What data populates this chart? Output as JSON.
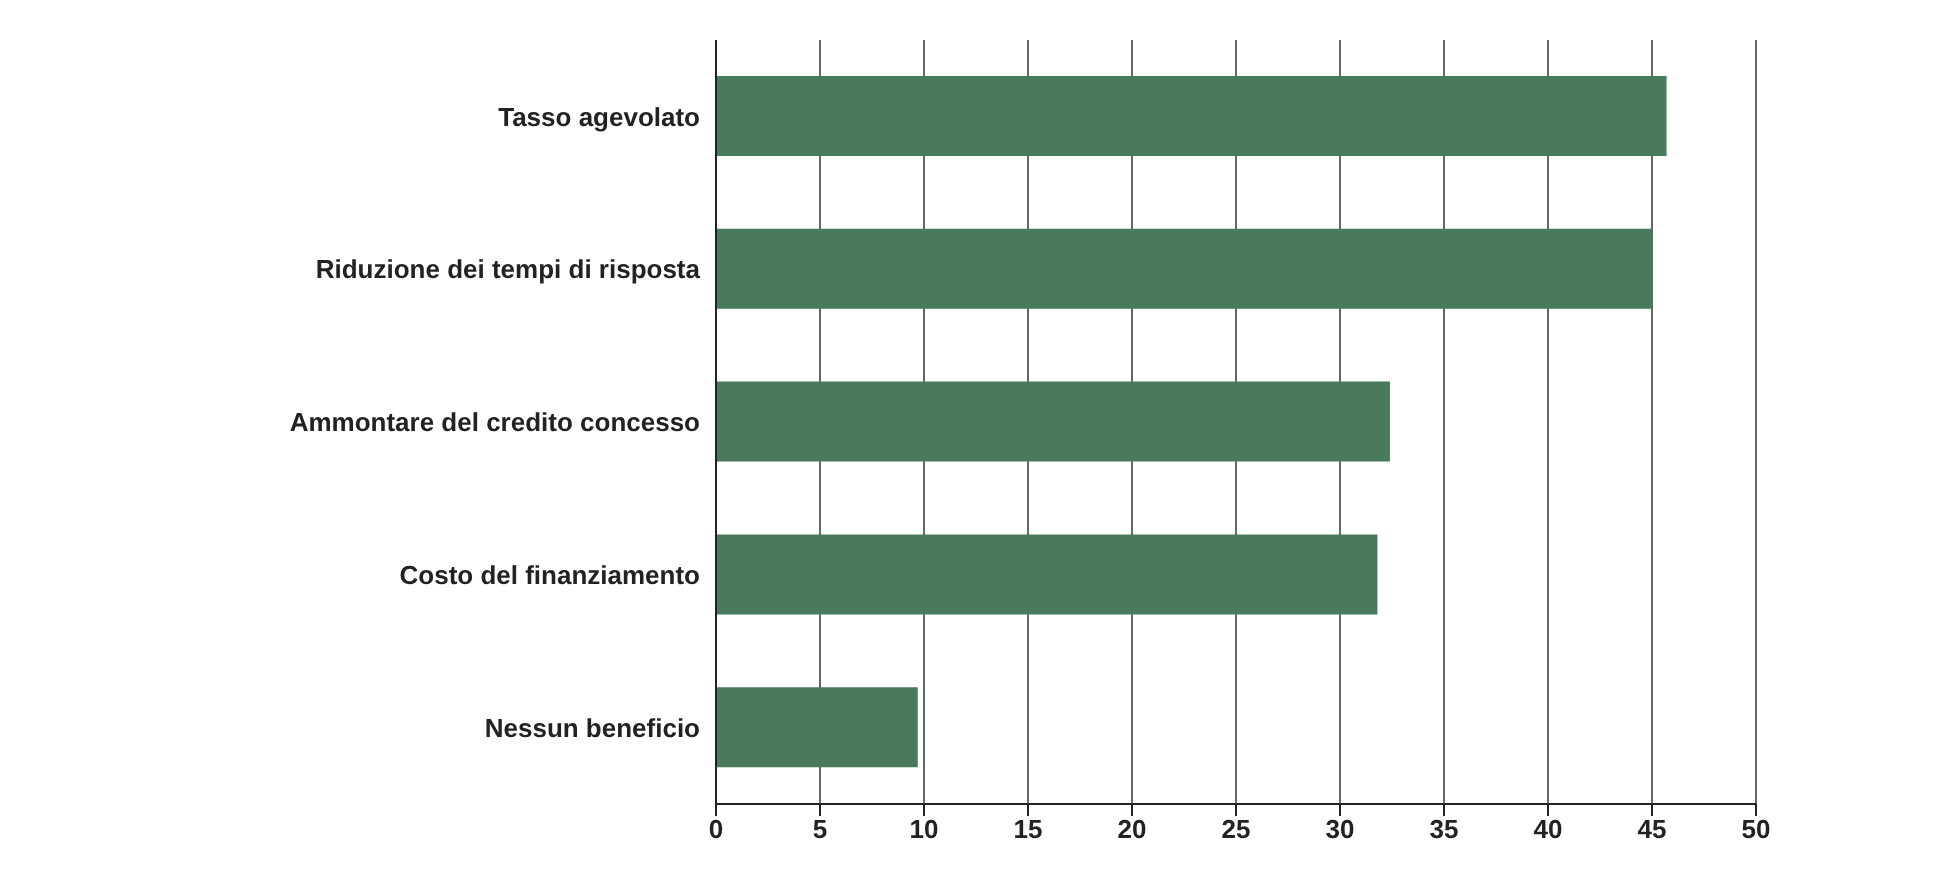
{
  "chart_data": {
    "type": "bar",
    "orientation": "horizontal",
    "categories": [
      "Tasso agevolato",
      "Riduzione dei tempi di risposta",
      "Ammontare del credito concesso",
      "Costo del finanziamento",
      "Nessun beneficio"
    ],
    "values": [
      45.7,
      45.0,
      32.4,
      31.8,
      9.7
    ],
    "color": "#4a7a5c",
    "xlim": [
      0,
      50
    ],
    "xticks": [
      0,
      5,
      10,
      15,
      20,
      25,
      30,
      35,
      40,
      45,
      50
    ],
    "grid": "x"
  }
}
